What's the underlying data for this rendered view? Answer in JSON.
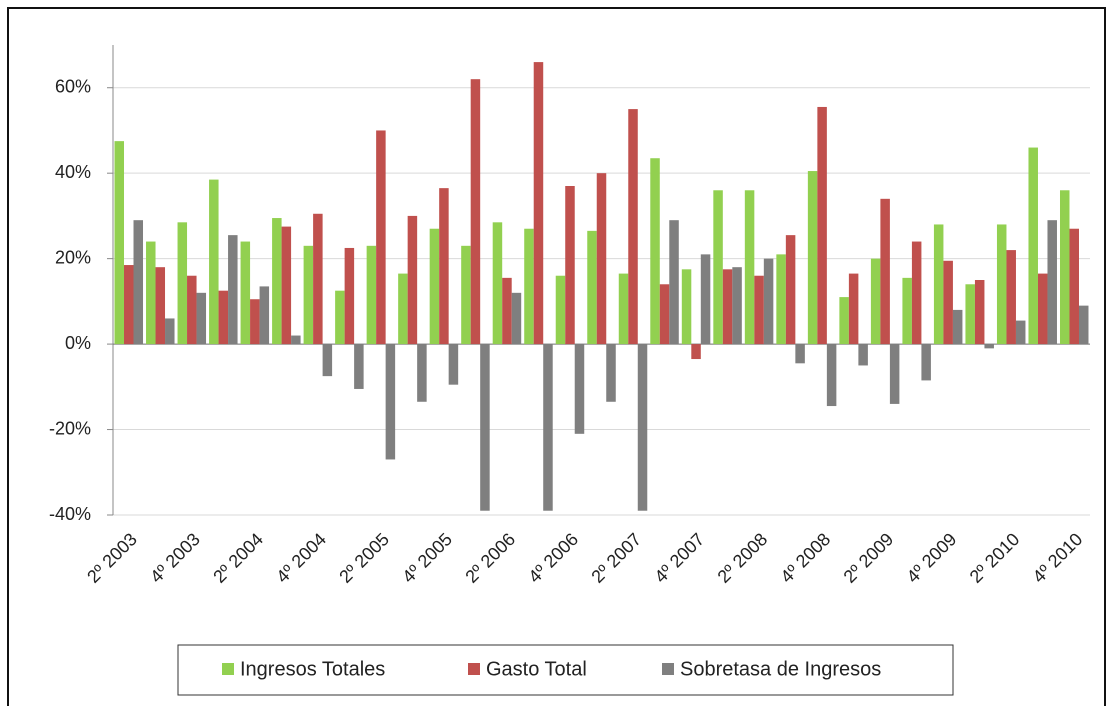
{
  "chart_data": {
    "type": "bar",
    "categories": [
      "2º 2003",
      null,
      "4º 2003",
      null,
      "2º 2004",
      null,
      "4º 2004",
      null,
      "2º 2005",
      null,
      "4º 2005",
      null,
      "2º 2006",
      null,
      "4º 2006",
      null,
      "2º 2007",
      null,
      "4º 2007",
      null,
      "2º 2008",
      null,
      "4º 2008",
      null,
      "2º 2009",
      null,
      "4º 2009",
      null,
      "2º 2010",
      null,
      "4º 2010"
    ],
    "series": [
      {
        "name": "Ingresos Totales",
        "color": "#92d050",
        "values": [
          47.5,
          24,
          28.5,
          38.5,
          24,
          29.5,
          23,
          12.5,
          23,
          16.5,
          27,
          23,
          28.5,
          27,
          16,
          26.5,
          16.5,
          43.5,
          17.5,
          36,
          36,
          21,
          40.5,
          11,
          20,
          15.5,
          28,
          14,
          28,
          46,
          36
        ]
      },
      {
        "name": "Gasto Total",
        "color": "#c0504d",
        "values": [
          18.5,
          18,
          16,
          12.5,
          10.5,
          27.5,
          30.5,
          22.5,
          50,
          30,
          36.5,
          62,
          15.5,
          66,
          37,
          40,
          55,
          14,
          -3.5,
          17.5,
          16,
          25.5,
          55.5,
          16.5,
          34,
          24,
          19.5,
          15,
          22,
          16.5,
          27
        ]
      },
      {
        "name": "Sobretasa de Ingresos",
        "color": "#7f7f7f",
        "values": [
          29,
          6,
          12,
          25.5,
          13.5,
          2,
          -7.5,
          -10.5,
          -27,
          -13.5,
          -9.5,
          -39,
          12,
          -39,
          -21,
          -13.5,
          -39,
          29,
          21,
          18,
          20,
          -4.5,
          -14.5,
          -5,
          -14,
          -8.5,
          8,
          -1,
          5.5,
          29,
          9
        ]
      }
    ],
    "ylim": [
      -40,
      70
    ],
    "yticks": [
      {
        "value": -40,
        "label": "-40%"
      },
      {
        "value": -20,
        "label": "-20%"
      },
      {
        "value": 0,
        "label": "0%"
      },
      {
        "value": 20,
        "label": "20%"
      },
      {
        "value": 40,
        "label": "40%"
      },
      {
        "value": 60,
        "label": "60%"
      }
    ],
    "grid": true,
    "legend": "bottom"
  }
}
